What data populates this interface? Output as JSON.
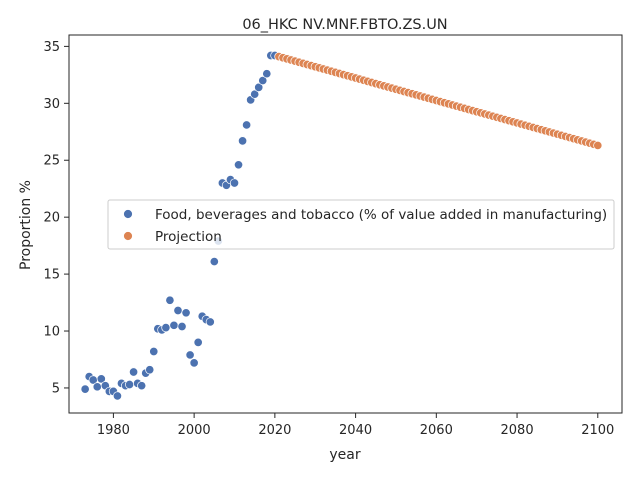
{
  "chart_data": {
    "type": "scatter",
    "title": "06_HKC NV.MNF.FBTO.ZS.UN",
    "xlabel": "year",
    "ylabel": "Proportion %",
    "xlim": [
      1969,
      2106
    ],
    "ylim": [
      2.8,
      36
    ],
    "xticks": [
      1980,
      2000,
      2020,
      2040,
      2060,
      2080,
      2100
    ],
    "yticks": [
      5,
      10,
      15,
      20,
      25,
      30,
      35
    ],
    "grid": false,
    "legend_position": "center-right",
    "series": [
      {
        "name": "Food, beverages and tobacco (% of value added in manufacturing)",
        "color": "#4c72b0",
        "x": [
          1973,
          1974,
          1975,
          1976,
          1977,
          1978,
          1979,
          1980,
          1981,
          1982,
          1983,
          1984,
          1985,
          1986,
          1987,
          1988,
          1989,
          1990,
          1991,
          1992,
          1993,
          1994,
          1995,
          1996,
          1997,
          1998,
          1999,
          2000,
          2001,
          2002,
          2003,
          2004,
          2005,
          2006,
          2007,
          2008,
          2009,
          2010,
          2011,
          2012,
          2013,
          2014,
          2015,
          2016,
          2017,
          2018,
          2019,
          2020
        ],
        "y": [
          4.9,
          6.0,
          5.7,
          5.1,
          5.8,
          5.2,
          4.7,
          4.7,
          4.3,
          5.4,
          5.2,
          5.3,
          6.4,
          5.4,
          5.2,
          6.3,
          6.6,
          8.2,
          10.2,
          10.1,
          10.3,
          12.7,
          10.5,
          11.8,
          10.4,
          11.6,
          7.9,
          7.2,
          9.0,
          11.3,
          11.0,
          10.8,
          16.1,
          17.9,
          23.0,
          22.8,
          23.3,
          23.0,
          24.6,
          26.7,
          28.1,
          30.3,
          30.8,
          31.4,
          32.0,
          32.6,
          34.2,
          34.2
        ]
      },
      {
        "name": "Projection",
        "color": "#dd8452",
        "x_start": 2021,
        "x_end": 2100,
        "y_start": 34.1,
        "y_end": 26.3
      }
    ]
  }
}
